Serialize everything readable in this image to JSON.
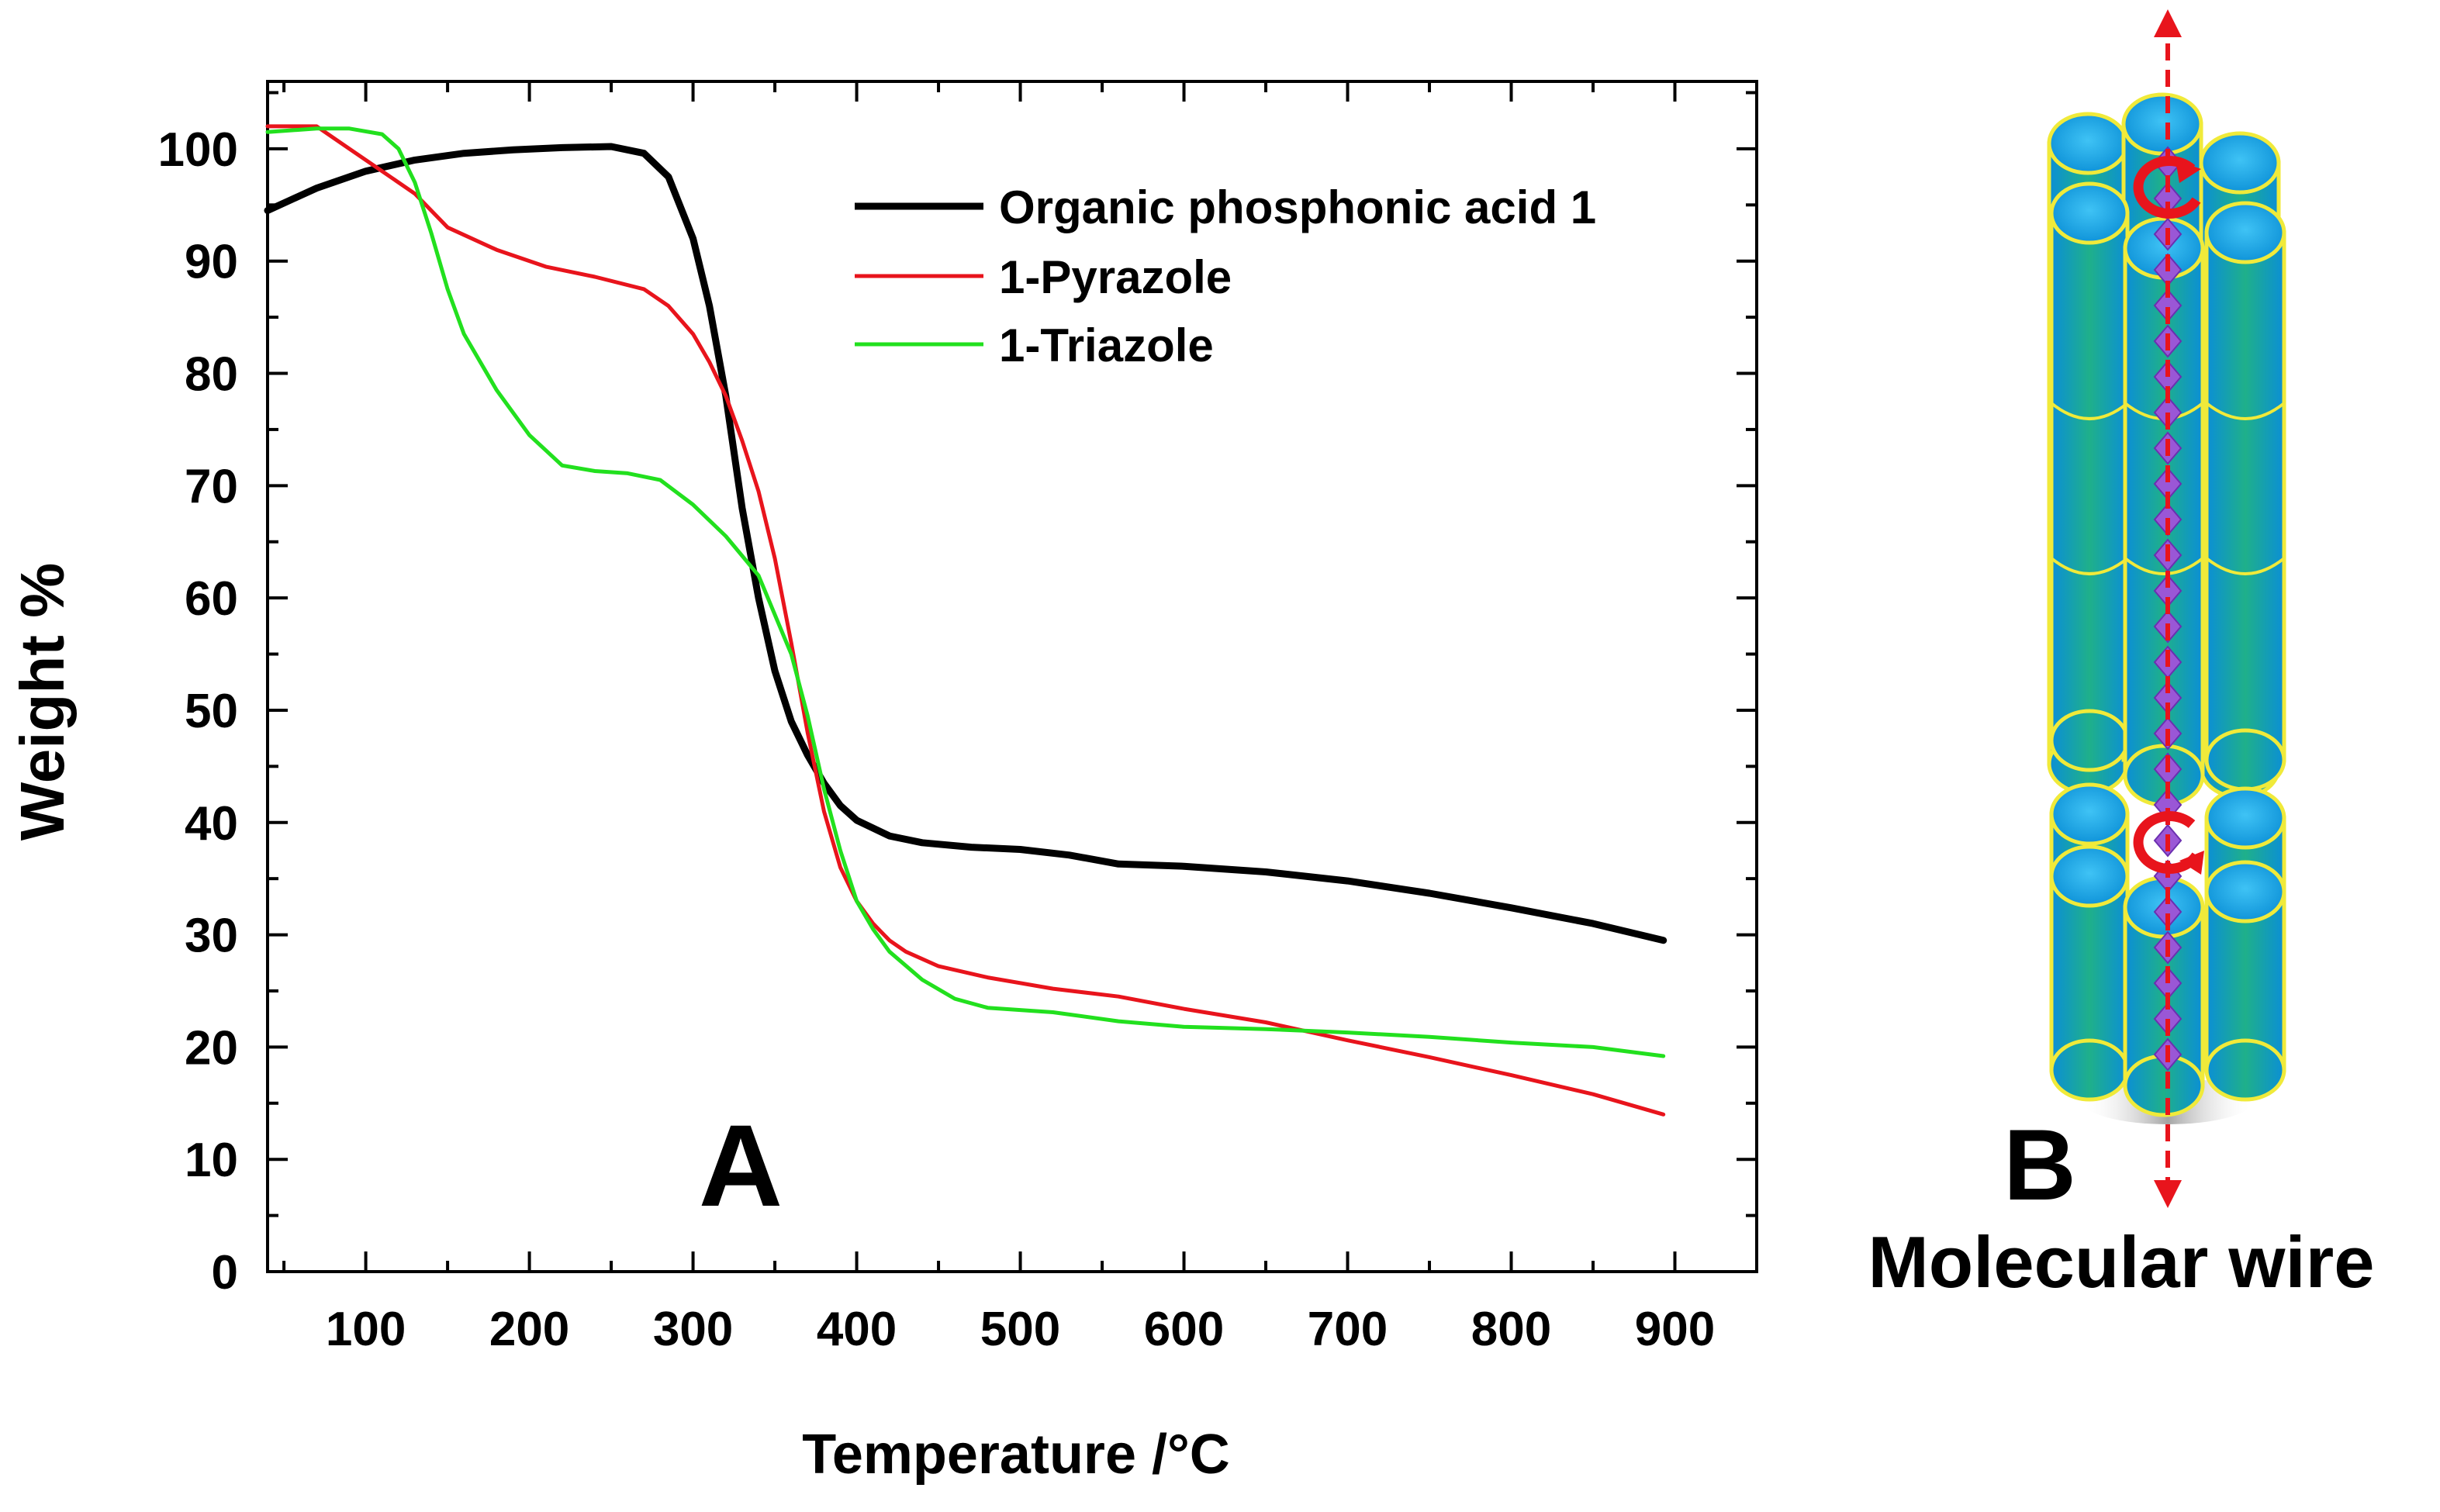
{
  "chart_data": {
    "type": "line",
    "title": "",
    "panel_label": "A",
    "xlabel": "Temperature /°C",
    "ylabel": "Weight %",
    "xlim": [
      40,
      950
    ],
    "ylim": [
      0,
      106
    ],
    "xticks": [
      100,
      200,
      300,
      400,
      500,
      600,
      700,
      800,
      900
    ],
    "yticks": [
      0,
      10,
      20,
      30,
      40,
      50,
      60,
      70,
      80,
      90,
      100
    ],
    "legend_position": "top-right",
    "series": [
      {
        "name": "Organic phosphonic acid 1",
        "color": "#000000",
        "x": [
          40,
          70,
          100,
          130,
          160,
          190,
          220,
          250,
          270,
          285,
          300,
          310,
          320,
          330,
          340,
          350,
          360,
          370,
          380,
          390,
          400,
          420,
          440,
          470,
          500,
          530,
          560,
          600,
          650,
          700,
          750,
          800,
          850,
          893
        ],
        "y": [
          94.5,
          96.5,
          98,
          99,
          99.6,
          99.9,
          100.1,
          100.2,
          99.6,
          97.5,
          92,
          86,
          78,
          68,
          60,
          53.5,
          49,
          46,
          43.5,
          41.5,
          40.2,
          38.8,
          38.2,
          37.8,
          37.6,
          37.1,
          36.3,
          36.1,
          35.6,
          34.8,
          33.7,
          32.4,
          31,
          29.5
        ]
      },
      {
        "name": "1-Pyrazole",
        "color": "#e8141c",
        "x": [
          40,
          70,
          90,
          110,
          130,
          150,
          180,
          210,
          240,
          270,
          285,
          300,
          310,
          320,
          330,
          340,
          350,
          360,
          370,
          380,
          390,
          400,
          410,
          420,
          430,
          450,
          480,
          520,
          560,
          600,
          650,
          700,
          750,
          800,
          850,
          893
        ],
        "y": [
          102,
          102,
          100,
          98,
          96,
          93,
          91,
          89.5,
          88.6,
          87.5,
          86,
          83.5,
          81,
          78,
          74,
          69.5,
          63.5,
          56,
          48,
          41,
          36,
          33,
          31,
          29.5,
          28.5,
          27.2,
          26.2,
          25.2,
          24.5,
          23.4,
          22.2,
          20.6,
          19.1,
          17.5,
          15.8,
          14
        ]
      },
      {
        "name": "1-Triazole",
        "color": "#22e01e",
        "x": [
          40,
          70,
          90,
          110,
          120,
          130,
          140,
          150,
          160,
          180,
          200,
          220,
          240,
          260,
          280,
          300,
          320,
          340,
          360,
          370,
          380,
          390,
          400,
          410,
          420,
          440,
          460,
          480,
          520,
          560,
          600,
          650,
          700,
          750,
          800,
          850,
          893
        ],
        "y": [
          101.5,
          101.8,
          101.8,
          101.3,
          100,
          97,
          92.5,
          87.5,
          83.5,
          78.5,
          74.5,
          71.8,
          71.3,
          71.1,
          70.5,
          68.3,
          65.5,
          62,
          55,
          49.5,
          43,
          37.5,
          33,
          30.5,
          28.5,
          26,
          24.3,
          23.5,
          23.1,
          22.3,
          21.8,
          21.6,
          21.3,
          20.9,
          20.4,
          20,
          19.2
        ]
      }
    ]
  },
  "panel_b": {
    "label": "B",
    "caption": "Molecular wire",
    "colors": {
      "cylinder_top": "#0d9fe0",
      "cylinder_body": "#1aa58a",
      "cylinder_outline": "#f0ea3a",
      "axis_arrow": "#e8141c",
      "chain": "#9a57d6"
    }
  }
}
